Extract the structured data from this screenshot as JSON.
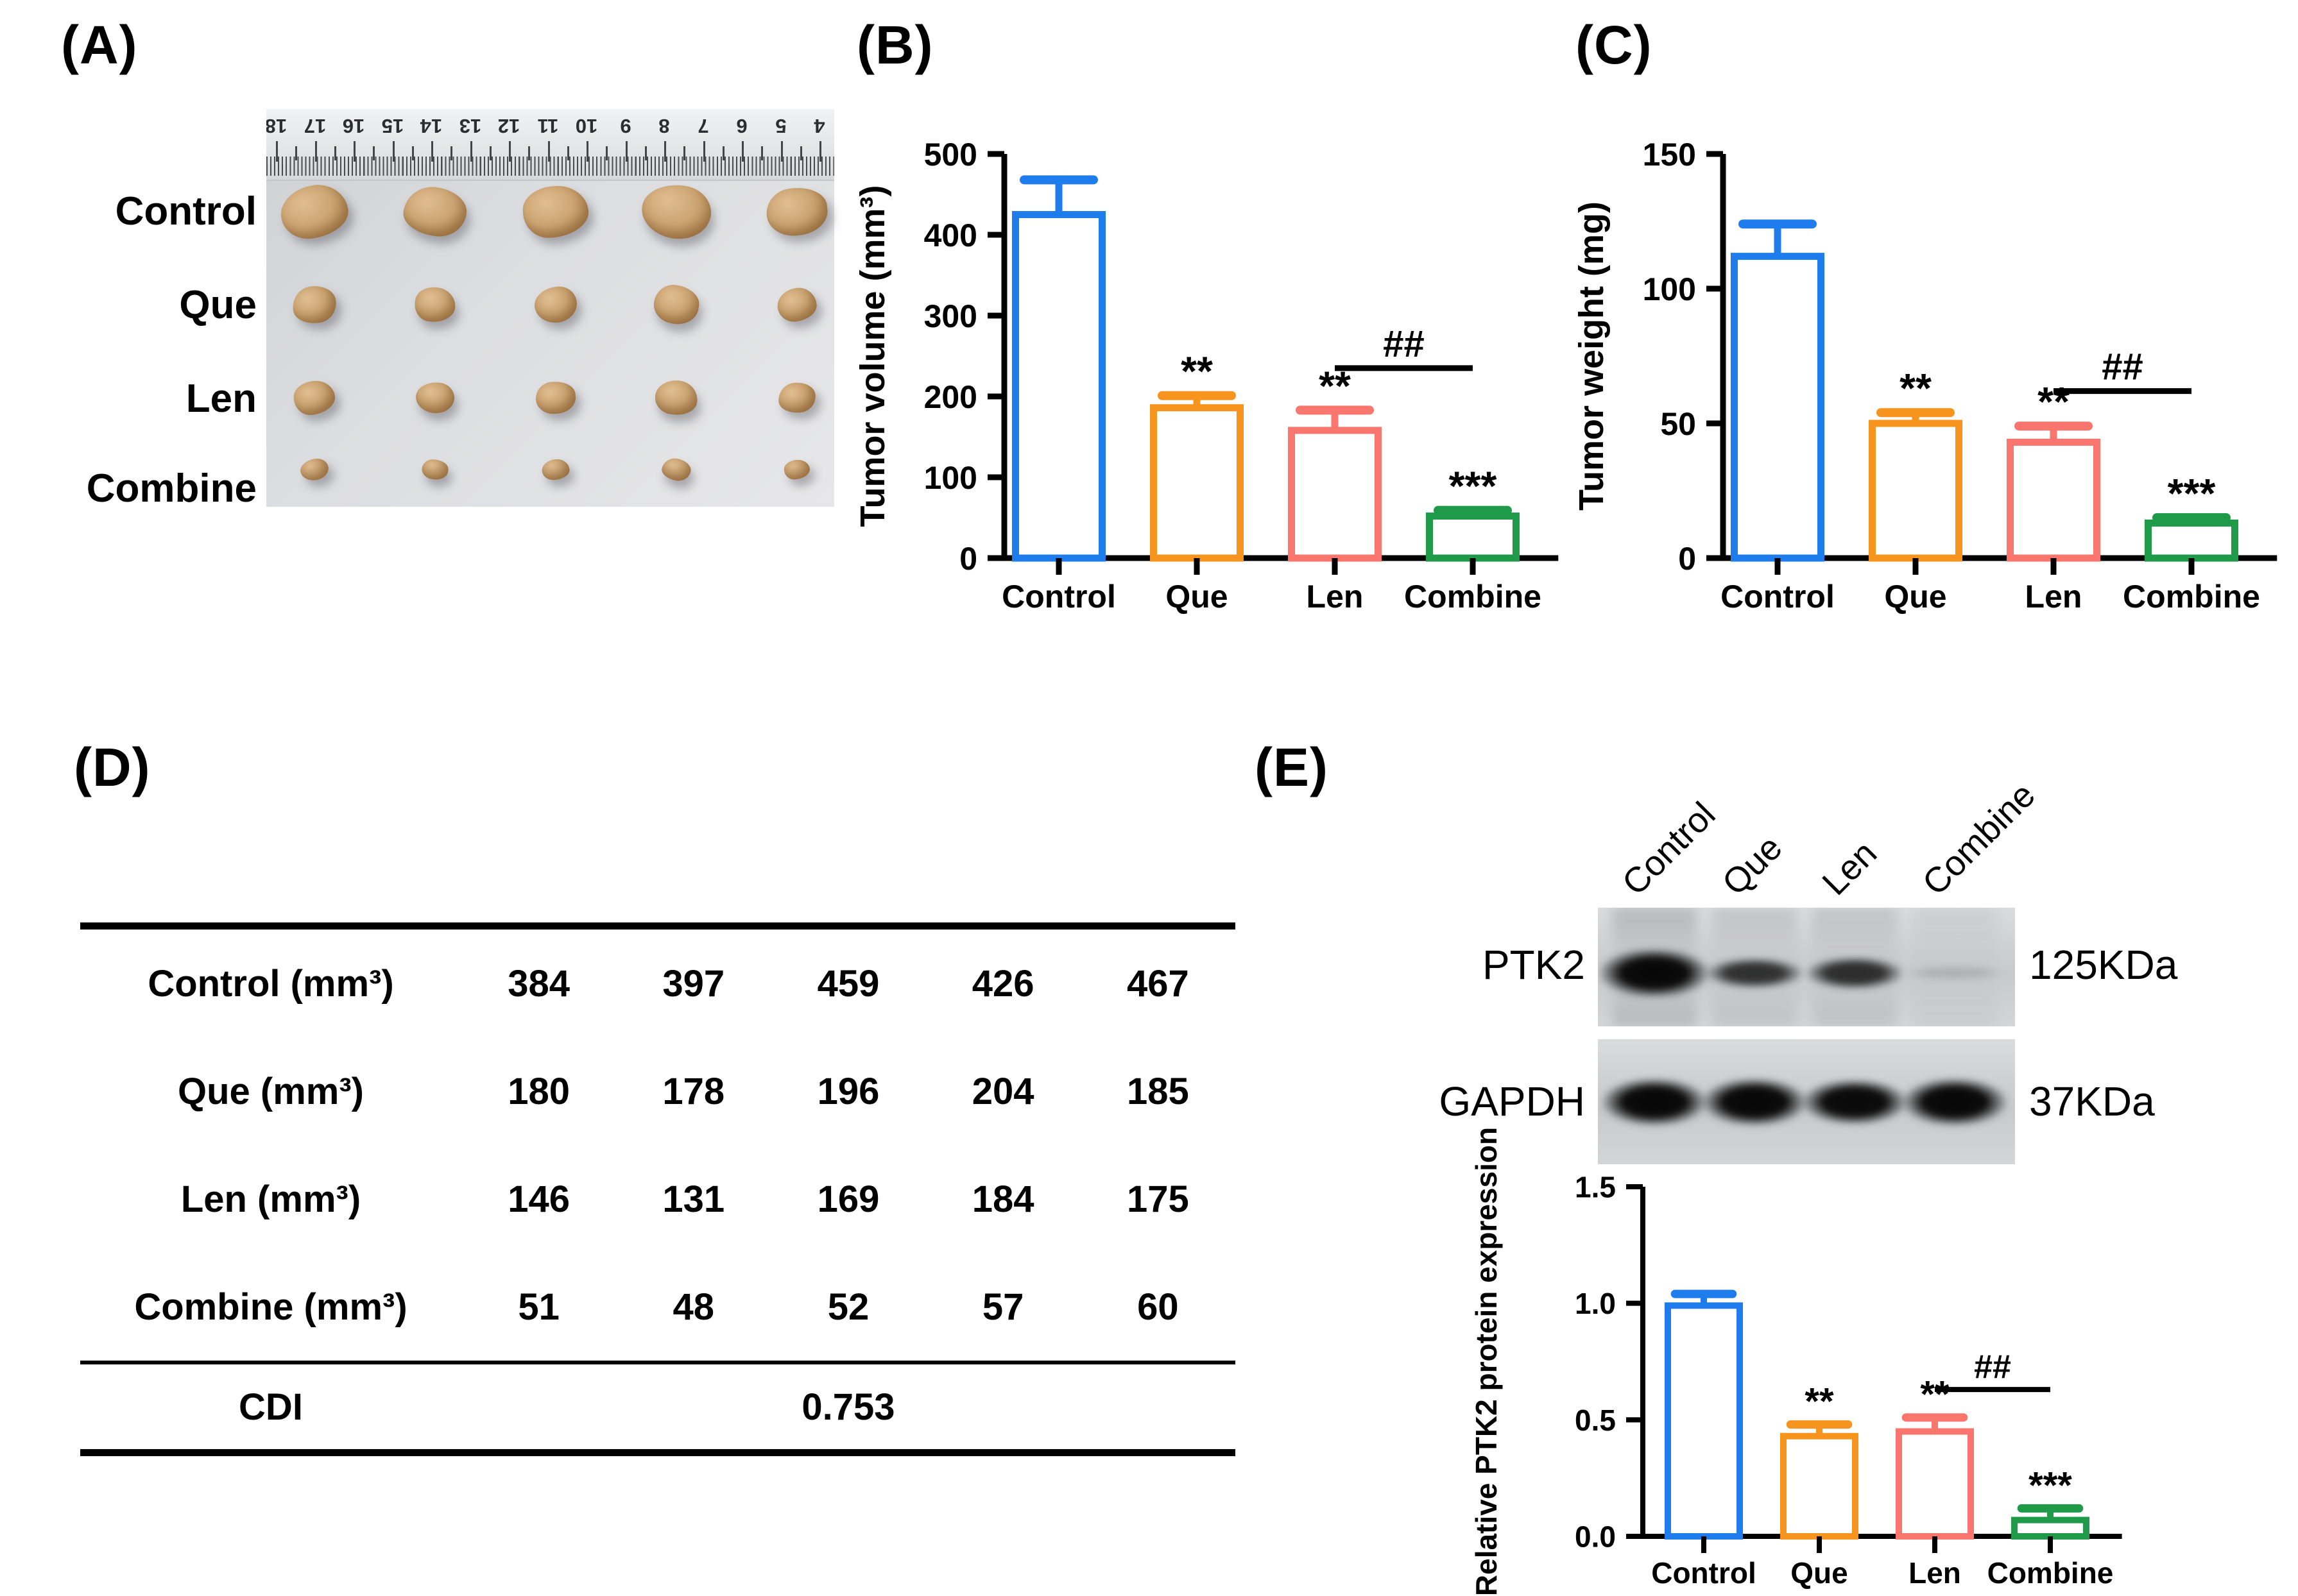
{
  "figure": {
    "panel_a": {
      "label": "(A)",
      "row_labels": [
        "Control",
        "Que",
        "Len",
        "Combine"
      ],
      "ruler_numbers": [
        "18",
        "17",
        "16",
        "15",
        "14",
        "13",
        "12",
        "11",
        "10",
        "9",
        "8",
        "7",
        "6",
        "5",
        "4"
      ]
    },
    "panel_b": {
      "label": "(B)"
    },
    "panel_c": {
      "label": "(C)"
    },
    "panel_d": {
      "label": "(D)",
      "table": {
        "rows": [
          {
            "label": "Control (mm³)",
            "values": [
              "384",
              "397",
              "459",
              "426",
              "467"
            ]
          },
          {
            "label": "Que (mm³)",
            "values": [
              "180",
              "178",
              "196",
              "204",
              "185"
            ]
          },
          {
            "label": "Len (mm³)",
            "values": [
              "146",
              "131",
              "169",
              "184",
              "175"
            ]
          },
          {
            "label": "Combine (mm³)",
            "values": [
              "51",
              "48",
              "52",
              "57",
              "60"
            ]
          }
        ],
        "footer_label": "CDI",
        "footer_value": "0.753"
      }
    },
    "panel_e": {
      "label": "(E)",
      "blot": {
        "lanes": [
          "Control",
          "Que",
          "Len",
          "Combine"
        ],
        "rows": [
          {
            "name": "PTK2",
            "kda": "125KDa",
            "band_intensities": [
              1.0,
              0.5,
              0.55,
              0.07
            ]
          },
          {
            "name": "GAPDH",
            "kda": "37KDa",
            "band_intensities": [
              1.0,
              1.0,
              0.85,
              1.0
            ]
          }
        ]
      }
    }
  },
  "chart_data": [
    {
      "id": "tumor_volume",
      "type": "bar",
      "title": "",
      "xlabel": "",
      "ylabel": "Tumor volume (mm³)",
      "categories": [
        "Control",
        "Que",
        "Len",
        "Combine"
      ],
      "values": [
        425,
        186,
        158,
        52
      ],
      "errors": [
        43,
        15,
        25,
        7
      ],
      "sig": [
        "",
        "**",
        "**",
        "***"
      ],
      "bracket": {
        "from": 2,
        "to": 3,
        "y": 235,
        "label": "##"
      },
      "ylim": [
        0,
        500
      ],
      "yticks": [
        {
          "v": 0,
          "label": "0"
        },
        {
          "v": 100,
          "label": "100"
        },
        {
          "v": 200,
          "label": "200"
        },
        {
          "v": 300,
          "label": "300"
        },
        {
          "v": 400,
          "label": "400"
        },
        {
          "v": 500,
          "label": "500"
        }
      ],
      "colors": [
        "#1e7cec",
        "#f7941e",
        "#f8766d",
        "#1f9a48"
      ],
      "grid": false,
      "legend": null
    },
    {
      "id": "tumor_weight",
      "type": "bar",
      "title": "",
      "xlabel": "",
      "ylabel": "Tumor weight (mg)",
      "categories": [
        "Control",
        "Que",
        "Len",
        "Combine"
      ],
      "values": [
        112,
        50,
        43,
        13
      ],
      "errors": [
        12,
        4,
        6,
        2
      ],
      "sig": [
        "",
        "**",
        "**",
        "***"
      ],
      "bracket": {
        "from": 2,
        "to": 3,
        "y": 62,
        "label": "##"
      },
      "ylim": [
        0,
        150
      ],
      "yticks": [
        {
          "v": 0,
          "label": "0"
        },
        {
          "v": 50,
          "label": "50"
        },
        {
          "v": 100,
          "label": "100"
        },
        {
          "v": 150,
          "label": "150"
        }
      ],
      "colors": [
        "#1e7cec",
        "#f7941e",
        "#f8766d",
        "#1f9a48"
      ],
      "grid": false,
      "legend": null
    },
    {
      "id": "ptk2_expression",
      "type": "bar",
      "title": "",
      "xlabel": "",
      "ylabel": "Relative PTK2 protein expression",
      "categories": [
        "Control",
        "Que",
        "Len",
        "Combine"
      ],
      "values": [
        0.99,
        0.43,
        0.45,
        0.07
      ],
      "errors": [
        0.05,
        0.05,
        0.06,
        0.05
      ],
      "sig": [
        "",
        "**",
        "**",
        "***"
      ],
      "bracket": {
        "from": 2,
        "to": 3,
        "y": 0.63,
        "label": "##"
      },
      "ylim": [
        0,
        1.5
      ],
      "yticks": [
        {
          "v": 0,
          "label": "0.0"
        },
        {
          "v": 0.5,
          "label": "0.5"
        },
        {
          "v": 1.0,
          "label": "1.0"
        },
        {
          "v": 1.5,
          "label": "1.5"
        }
      ],
      "colors": [
        "#1e7cec",
        "#f7941e",
        "#f8766d",
        "#1f9a48"
      ],
      "grid": false,
      "legend": null
    }
  ]
}
